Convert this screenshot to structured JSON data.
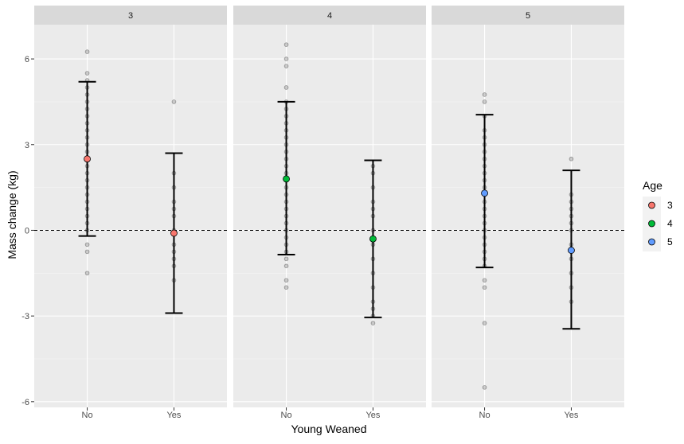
{
  "chart_data": {
    "type": "scatter",
    "xlabel": "Young Weaned",
    "ylabel": "Mass change (kg)",
    "categories": [
      "No",
      "Yes"
    ],
    "ylim": [
      -6.2,
      7.2
    ],
    "yticks": [
      -6,
      -3,
      0,
      3,
      6
    ],
    "reference_line_y": 0,
    "grid": true,
    "legend": {
      "title": "Age",
      "position": "right",
      "entries": [
        {
          "label": "3",
          "color": "#F8766D"
        },
        {
          "label": "4",
          "color": "#00BA38"
        },
        {
          "label": "5",
          "color": "#619CFF"
        }
      ]
    },
    "panels": [
      {
        "strip": "3",
        "color": "#F8766D",
        "summary": [
          {
            "x": "No",
            "mean": 2.5,
            "lower": -0.2,
            "upper": 5.2
          },
          {
            "x": "Yes",
            "mean": -0.1,
            "lower": -2.9,
            "upper": 2.7
          }
        ],
        "raw": [
          {
            "x": "No",
            "values": [
              6.25,
              5.5,
              5.25,
              5.0,
              4.75,
              4.5,
              4.25,
              4.0,
              3.75,
              3.5,
              3.25,
              3.0,
              2.75,
              2.5,
              2.25,
              2.0,
              1.75,
              1.5,
              1.25,
              1.0,
              0.75,
              0.5,
              0.25,
              0.0,
              -0.5,
              -0.75,
              -1.5
            ]
          },
          {
            "x": "Yes",
            "values": [
              4.5,
              2.0,
              1.5,
              1.0,
              0.75,
              0.5,
              0.0,
              -0.5,
              -0.75,
              -1.0,
              -1.25,
              -1.75
            ]
          }
        ]
      },
      {
        "strip": "4",
        "color": "#00BA38",
        "summary": [
          {
            "x": "No",
            "mean": 1.8,
            "lower": -0.85,
            "upper": 4.5
          },
          {
            "x": "Yes",
            "mean": -0.3,
            "lower": -3.05,
            "upper": 2.45
          }
        ],
        "raw": [
          {
            "x": "No",
            "values": [
              6.5,
              6.0,
              5.75,
              5.0,
              4.5,
              4.25,
              4.0,
              3.75,
              3.5,
              3.25,
              3.0,
              2.75,
              2.5,
              2.25,
              2.0,
              1.75,
              1.5,
              1.25,
              1.0,
              0.75,
              0.5,
              0.25,
              0.0,
              -0.25,
              -0.5,
              -0.75,
              -1.0,
              -1.25,
              -1.75,
              -2.0
            ]
          },
          {
            "x": "Yes",
            "values": [
              2.25,
              2.0,
              1.5,
              1.0,
              0.75,
              0.5,
              0.0,
              -0.25,
              -0.5,
              -1.0,
              -1.5,
              -2.0,
              -2.5,
              -2.75,
              -3.0,
              -3.25
            ]
          }
        ]
      },
      {
        "strip": "5",
        "color": "#619CFF",
        "summary": [
          {
            "x": "No",
            "mean": 1.3,
            "lower": -1.3,
            "upper": 4.05
          },
          {
            "x": "Yes",
            "mean": -0.7,
            "lower": -3.45,
            "upper": 2.1
          }
        ],
        "raw": [
          {
            "x": "No",
            "values": [
              4.75,
              4.5,
              4.0,
              3.5,
              3.25,
              3.0,
              2.75,
              2.5,
              2.25,
              2.0,
              1.75,
              1.5,
              1.25,
              1.0,
              0.75,
              0.5,
              0.25,
              0.0,
              -0.25,
              -0.5,
              -0.75,
              -1.0,
              -1.25,
              -1.75,
              -2.0,
              -3.25,
              -5.5
            ]
          },
          {
            "x": "Yes",
            "values": [
              2.5,
              1.25,
              1.0,
              0.75,
              0.5,
              0.25,
              0.0,
              -0.5,
              -1.0,
              -1.5,
              -2.0,
              -2.5
            ]
          }
        ]
      }
    ]
  }
}
